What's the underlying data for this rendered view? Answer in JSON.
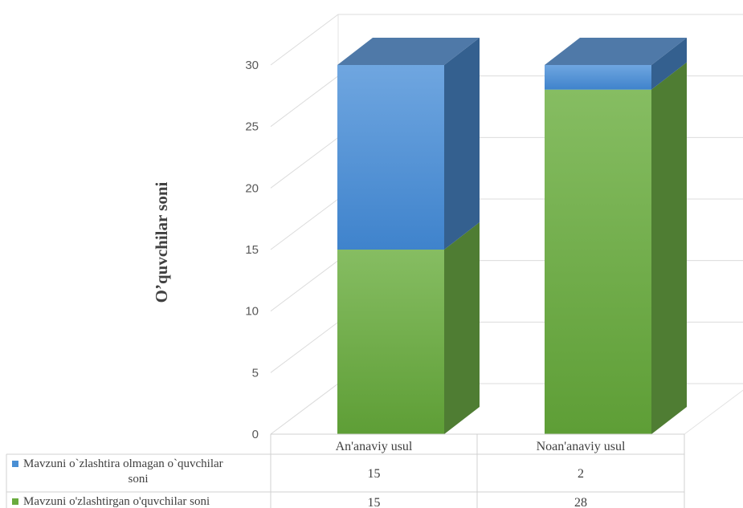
{
  "chart_data": {
    "type": "bar",
    "stacked": true,
    "three_d": true,
    "categories": [
      "An'anaviy usul",
      "Noan'anaviy usul"
    ],
    "series": [
      {
        "name": "Mavzuni o'zlashtirgan o'quvchilar soni",
        "values": [
          15,
          28
        ],
        "color": "#6aab3e"
      },
      {
        "name": "Mavzuni o`zlashtira olmagan o`quvchilar soni",
        "legend_lines": [
          "Mavzuni o`zlashtira olmagan o`quvchilar",
          "soni"
        ],
        "values": [
          15,
          2
        ],
        "color": "#4a8fd4"
      }
    ],
    "ylabel": "O’quvchilar soni",
    "ylim": [
      0,
      30
    ],
    "yticks": [
      0,
      5,
      10,
      15,
      20,
      25,
      30
    ],
    "grid": true,
    "legend": "data-table"
  }
}
